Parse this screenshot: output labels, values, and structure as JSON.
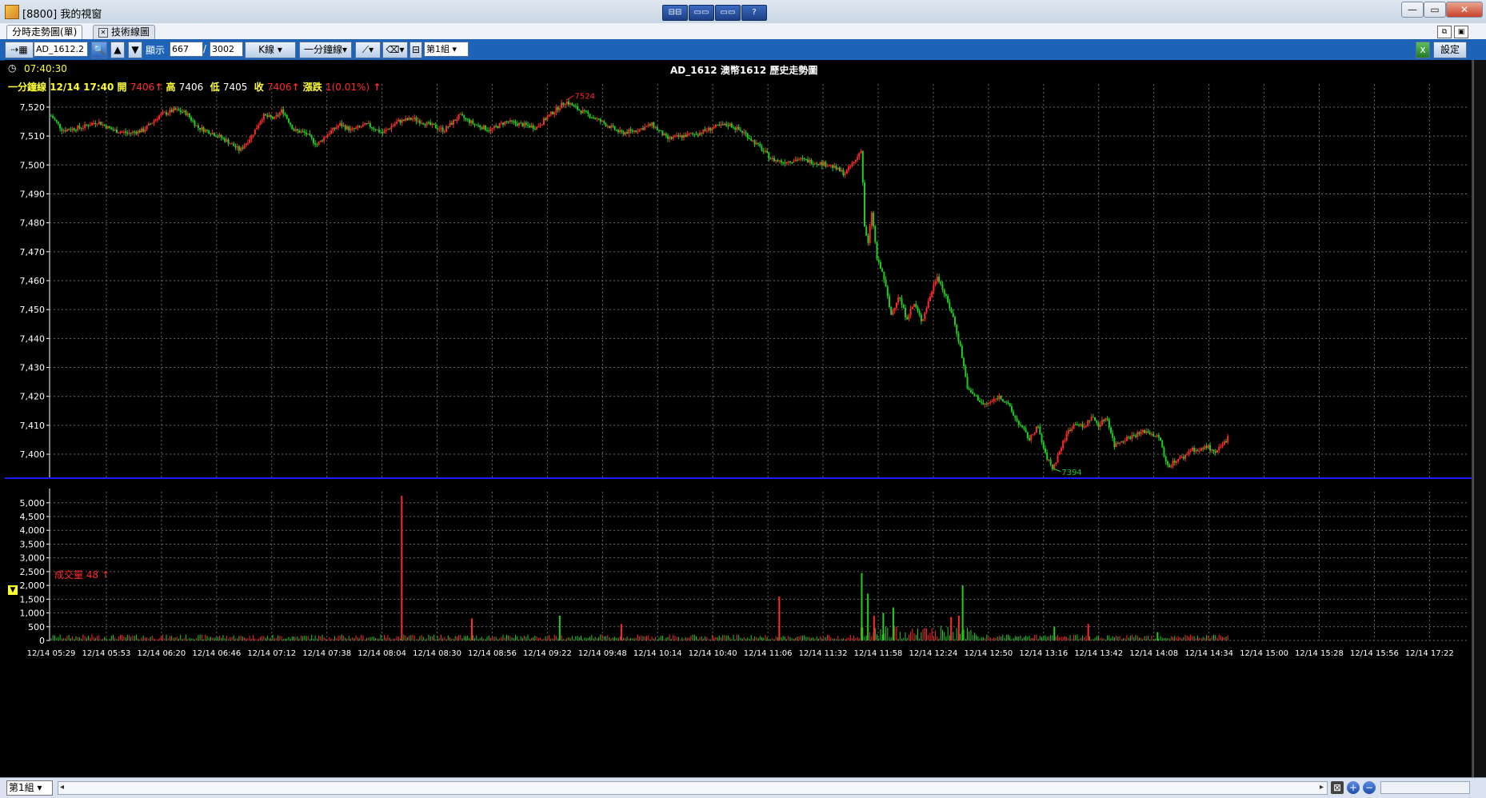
{
  "window": {
    "title": "[8800] 我的視窗",
    "mid_buttons": [
      "⊟⊟",
      "▭▭",
      "▭▭",
      "?"
    ],
    "controls": [
      "—",
      "▭",
      "✕"
    ]
  },
  "tabs": [
    {
      "label": "分時走勢圖(單)"
    },
    {
      "label": "技術線圖"
    }
  ],
  "toolbar": {
    "symbol": "AD_1612.2",
    "display_label": "顯示",
    "display_count": "667",
    "separator": "/",
    "total_count": "3002",
    "kline_button": "K線",
    "period_button": "一分鐘線",
    "group_select": "第1組",
    "settings_button": "設定"
  },
  "chart_header": {
    "time": "07:40:30",
    "title": "AD_1612 澳幣1612  歷史走勢圖",
    "line1_prefix": "一分鐘線",
    "line1_datetime": "12/14 17:40",
    "open_label": "開",
    "open_value": "7406",
    "high_label": "高",
    "high_value": "7406",
    "low_label": "低",
    "low_value": "7405",
    "close_label": "收",
    "close_value": "7406",
    "change_label": "漲跌",
    "change_value": "1(0.01%)",
    "volume_label": "成交量",
    "volume_value": "48"
  },
  "arrow_glyph": "↑",
  "colors": {
    "up": "#ff2a2a",
    "down": "#22cc22",
    "grid": "#6a6a6a",
    "divider": "#1a1aff",
    "label": "#ffff33",
    "axis_text": "#ffffff"
  },
  "bottom": {
    "group_select": "第1組"
  },
  "chart_data": {
    "type": "candlestick",
    "title": "AD_1612 澳幣1612  歷史走勢圖",
    "price_ylim": [
      7392,
      7528
    ],
    "price_ticks": [
      7520,
      7510,
      7500,
      7490,
      7480,
      7470,
      7460,
      7450,
      7440,
      7430,
      7420,
      7410,
      7400
    ],
    "price_tick_labels": [
      "7,520",
      "7,510",
      "7,500",
      "7,490",
      "7,480",
      "7,470",
      "7,460",
      "7,450",
      "7,440",
      "7,430",
      "7,420",
      "7,410",
      "7,400"
    ],
    "high_marker": 7524,
    "low_marker": 7394,
    "volume_ylim": [
      0,
      5400
    ],
    "volume_ticks": [
      5000,
      4500,
      4000,
      3500,
      3000,
      2500,
      2000,
      1500,
      1000,
      500,
      0
    ],
    "volume_tick_labels": [
      "5,000",
      "4,500",
      "4,000",
      "3,500",
      "3,000",
      "2,500",
      "2,000",
      "1,500",
      "1,000",
      "500",
      "0"
    ],
    "x_labels": [
      "12/14 05:29",
      "12/14 05:53",
      "12/14 06:20",
      "12/14 06:46",
      "12/14 07:12",
      "12/14 07:38",
      "12/14 08:04",
      "12/14 08:30",
      "12/14 08:56",
      "12/14 09:22",
      "12/14 09:48",
      "12/14 10:14",
      "12/14 10:40",
      "12/14 11:06",
      "12/14 11:32",
      "12/14 11:58",
      "12/14 12:24",
      "12/14 12:50",
      "12/14 13:16",
      "12/14 13:42",
      "12/14 14:08",
      "12/14 14:34",
      "12/14 15:00",
      "12/14 15:28",
      "12/14 15:56",
      "12/14 17:22"
    ],
    "close_path": [
      [
        0,
        7517
      ],
      [
        15,
        7512
      ],
      [
        40,
        7513
      ],
      [
        60,
        7515
      ],
      [
        80,
        7512
      ],
      [
        100,
        7511
      ],
      [
        120,
        7512
      ],
      [
        140,
        7517
      ],
      [
        160,
        7519
      ],
      [
        175,
        7518
      ],
      [
        190,
        7513
      ],
      [
        210,
        7511
      ],
      [
        230,
        7508
      ],
      [
        245,
        7505
      ],
      [
        260,
        7510
      ],
      [
        275,
        7517
      ],
      [
        290,
        7516
      ],
      [
        300,
        7519
      ],
      [
        315,
        7512
      ],
      [
        330,
        7511
      ],
      [
        345,
        7507
      ],
      [
        360,
        7511
      ],
      [
        375,
        7514
      ],
      [
        390,
        7512
      ],
      [
        410,
        7514
      ],
      [
        430,
        7511
      ],
      [
        450,
        7515
      ],
      [
        470,
        7516
      ],
      [
        490,
        7514
      ],
      [
        510,
        7512
      ],
      [
        530,
        7517
      ],
      [
        550,
        7514
      ],
      [
        570,
        7512
      ],
      [
        590,
        7515
      ],
      [
        610,
        7514
      ],
      [
        630,
        7513
      ],
      [
        650,
        7518
      ],
      [
        668,
        7522
      ],
      [
        685,
        7519
      ],
      [
        700,
        7517
      ],
      [
        720,
        7514
      ],
      [
        740,
        7511
      ],
      [
        760,
        7512
      ],
      [
        780,
        7514
      ],
      [
        800,
        7509
      ],
      [
        820,
        7510
      ],
      [
        840,
        7511
      ],
      [
        860,
        7513
      ],
      [
        880,
        7514
      ],
      [
        900,
        7511
      ],
      [
        920,
        7506
      ],
      [
        935,
        7502
      ],
      [
        950,
        7501
      ],
      [
        970,
        7502
      ],
      [
        990,
        7501
      ],
      [
        1010,
        7500
      ],
      [
        1030,
        7497
      ],
      [
        1045,
        7502
      ],
      [
        1052,
        7506
      ],
      [
        1055,
        7480
      ],
      [
        1060,
        7472
      ],
      [
        1065,
        7484
      ],
      [
        1072,
        7467
      ],
      [
        1080,
        7462
      ],
      [
        1090,
        7448
      ],
      [
        1100,
        7455
      ],
      [
        1110,
        7447
      ],
      [
        1120,
        7452
      ],
      [
        1130,
        7446
      ],
      [
        1140,
        7454
      ],
      [
        1150,
        7462
      ],
      [
        1160,
        7455
      ],
      [
        1170,
        7448
      ],
      [
        1180,
        7437
      ],
      [
        1190,
        7422
      ],
      [
        1200,
        7420
      ],
      [
        1210,
        7417
      ],
      [
        1220,
        7418
      ],
      [
        1230,
        7420
      ],
      [
        1240,
        7418
      ],
      [
        1250,
        7413
      ],
      [
        1260,
        7409
      ],
      [
        1270,
        7405
      ],
      [
        1280,
        7410
      ],
      [
        1290,
        7400
      ],
      [
        1300,
        7395
      ],
      [
        1310,
        7402
      ],
      [
        1320,
        7408
      ],
      [
        1330,
        7411
      ],
      [
        1340,
        7409
      ],
      [
        1350,
        7413
      ],
      [
        1360,
        7410
      ],
      [
        1370,
        7413
      ],
      [
        1380,
        7403
      ],
      [
        1390,
        7405
      ],
      [
        1400,
        7406
      ],
      [
        1410,
        7407
      ],
      [
        1420,
        7408
      ],
      [
        1430,
        7407
      ],
      [
        1440,
        7405
      ],
      [
        1445,
        7398
      ],
      [
        1450,
        7396
      ],
      [
        1460,
        7398
      ],
      [
        1470,
        7399
      ],
      [
        1480,
        7402
      ],
      [
        1490,
        7401
      ],
      [
        1500,
        7403
      ],
      [
        1510,
        7400
      ],
      [
        1520,
        7403
      ],
      [
        1528,
        7406
      ]
    ],
    "volume_spikes": [
      {
        "x": 455,
        "value": 5250,
        "dir": "up"
      },
      {
        "x": 1052,
        "value": 2450,
        "dir": "down"
      },
      {
        "x": 1183,
        "value": 2000,
        "dir": "down"
      },
      {
        "x": 945,
        "value": 1600,
        "dir": "up"
      },
      {
        "x": 1060,
        "value": 1700,
        "dir": "down"
      },
      {
        "x": 1093,
        "value": 1200,
        "dir": "down"
      },
      {
        "x": 1080,
        "value": 1000,
        "dir": "down"
      },
      {
        "x": 1068,
        "value": 900,
        "dir": "up"
      },
      {
        "x": 1178,
        "value": 900,
        "dir": "up"
      },
      {
        "x": 1168,
        "value": 850,
        "dir": "up"
      },
      {
        "x": 740,
        "value": 600,
        "dir": "up"
      },
      {
        "x": 546,
        "value": 800,
        "dir": "up"
      },
      {
        "x": 660,
        "value": 900,
        "dir": "down"
      },
      {
        "x": 1302,
        "value": 500,
        "dir": "down"
      },
      {
        "x": 1346,
        "value": 600,
        "dir": "up"
      },
      {
        "x": 1436,
        "value": 300,
        "dir": "down"
      }
    ]
  }
}
